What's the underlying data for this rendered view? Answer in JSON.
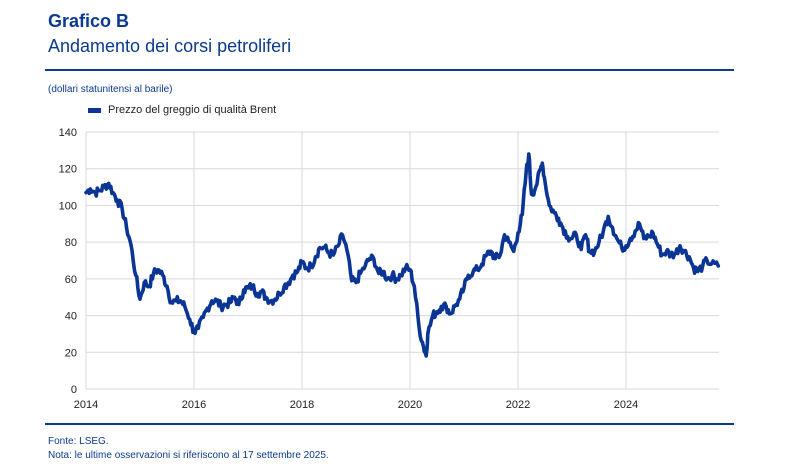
{
  "header": {
    "figure_label": "Grafico B",
    "title": "Andamento dei corsi petroliferi",
    "unit": "(dollari statunitensi al barile)"
  },
  "footer": {
    "source": "Fonte: LSEG.",
    "note": "Nota: le ultime osservazioni si riferiscono al 17 settembre 2025."
  },
  "colors": {
    "series": "#0a3595",
    "brand": "#0b3a8f",
    "grid": "#d9d9d9"
  },
  "chart_data": {
    "type": "line",
    "title": "Andamento dei corsi petroliferi",
    "xlabel": "",
    "ylabel": "dollari statunitensi al barile",
    "xlim": [
      2014,
      2025.85
    ],
    "ylim": [
      0,
      140
    ],
    "grid": true,
    "legend_position": "top-left",
    "x_ticks": [
      "2014",
      "2016",
      "2018",
      "2020",
      "2022",
      "2024"
    ],
    "x_tick_values": [
      2014,
      2016,
      2018,
      2020,
      2022,
      2024
    ],
    "y_ticks": [
      "0",
      "20",
      "40",
      "60",
      "80",
      "100",
      "120",
      "140"
    ],
    "y_tick_values": [
      0,
      20,
      40,
      60,
      80,
      100,
      120,
      140
    ],
    "series": [
      {
        "name": "Prezzo del greggio di qualità Brent",
        "x": [
          2014.0,
          2014.08,
          2014.17,
          2014.25,
          2014.33,
          2014.42,
          2014.5,
          2014.58,
          2014.67,
          2014.75,
          2014.83,
          2014.92,
          2015.0,
          2015.08,
          2015.17,
          2015.25,
          2015.33,
          2015.42,
          2015.5,
          2015.58,
          2015.67,
          2015.75,
          2015.83,
          2015.92,
          2016.0,
          2016.08,
          2016.17,
          2016.25,
          2016.33,
          2016.42,
          2016.5,
          2016.58,
          2016.67,
          2016.75,
          2016.83,
          2016.92,
          2017.0,
          2017.08,
          2017.17,
          2017.25,
          2017.33,
          2017.42,
          2017.5,
          2017.58,
          2017.67,
          2017.75,
          2017.83,
          2017.92,
          2018.0,
          2018.08,
          2018.17,
          2018.25,
          2018.33,
          2018.42,
          2018.5,
          2018.58,
          2018.67,
          2018.75,
          2018.83,
          2018.92,
          2019.0,
          2019.08,
          2019.17,
          2019.25,
          2019.33,
          2019.42,
          2019.5,
          2019.58,
          2019.67,
          2019.75,
          2019.83,
          2019.92,
          2020.0,
          2020.08,
          2020.17,
          2020.25,
          2020.3,
          2020.33,
          2020.42,
          2020.5,
          2020.58,
          2020.67,
          2020.75,
          2020.83,
          2020.92,
          2021.0,
          2021.08,
          2021.17,
          2021.25,
          2021.33,
          2021.42,
          2021.5,
          2021.58,
          2021.67,
          2021.75,
          2021.83,
          2021.92,
          2022.0,
          2022.08,
          2022.15,
          2022.2,
          2022.25,
          2022.33,
          2022.42,
          2022.45,
          2022.5,
          2022.58,
          2022.67,
          2022.75,
          2022.83,
          2022.92,
          2023.0,
          2023.08,
          2023.17,
          2023.25,
          2023.33,
          2023.42,
          2023.5,
          2023.58,
          2023.67,
          2023.75,
          2023.83,
          2023.92,
          2024.0,
          2024.08,
          2024.17,
          2024.25,
          2024.33,
          2024.42,
          2024.5,
          2024.58,
          2024.67,
          2024.75,
          2024.83,
          2024.92,
          2025.0,
          2025.08,
          2025.17,
          2025.25,
          2025.33,
          2025.42,
          2025.5,
          2025.58,
          2025.71
        ],
        "values": [
          107,
          109,
          107,
          108,
          110,
          112,
          107,
          103,
          98,
          88,
          79,
          62,
          49,
          58,
          56,
          63,
          65,
          62,
          56,
          47,
          48,
          48,
          45,
          38,
          31,
          33,
          39,
          44,
          48,
          48,
          45,
          46,
          47,
          50,
          46,
          54,
          55,
          56,
          52,
          53,
          50,
          48,
          49,
          52,
          56,
          58,
          62,
          64,
          69,
          66,
          67,
          72,
          77,
          77,
          74,
          73,
          78,
          84,
          76,
          59,
          58,
          63,
          67,
          71,
          71,
          63,
          64,
          60,
          62,
          60,
          62,
          66,
          65,
          56,
          33,
          23,
          18,
          30,
          40,
          42,
          45,
          45,
          41,
          45,
          49,
          55,
          62,
          64,
          65,
          68,
          73,
          75,
          71,
          73,
          84,
          80,
          75,
          85,
          95,
          118,
          128,
          106,
          110,
          120,
          123,
          113,
          100,
          96,
          93,
          88,
          83,
          82,
          84,
          76,
          84,
          75,
          75,
          80,
          86,
          94,
          88,
          82,
          77,
          78,
          82,
          86,
          90,
          82,
          83,
          85,
          79,
          73,
          75,
          73,
          74,
          78,
          75,
          72,
          66,
          64,
          67,
          70,
          68,
          67
        ]
      }
    ]
  }
}
